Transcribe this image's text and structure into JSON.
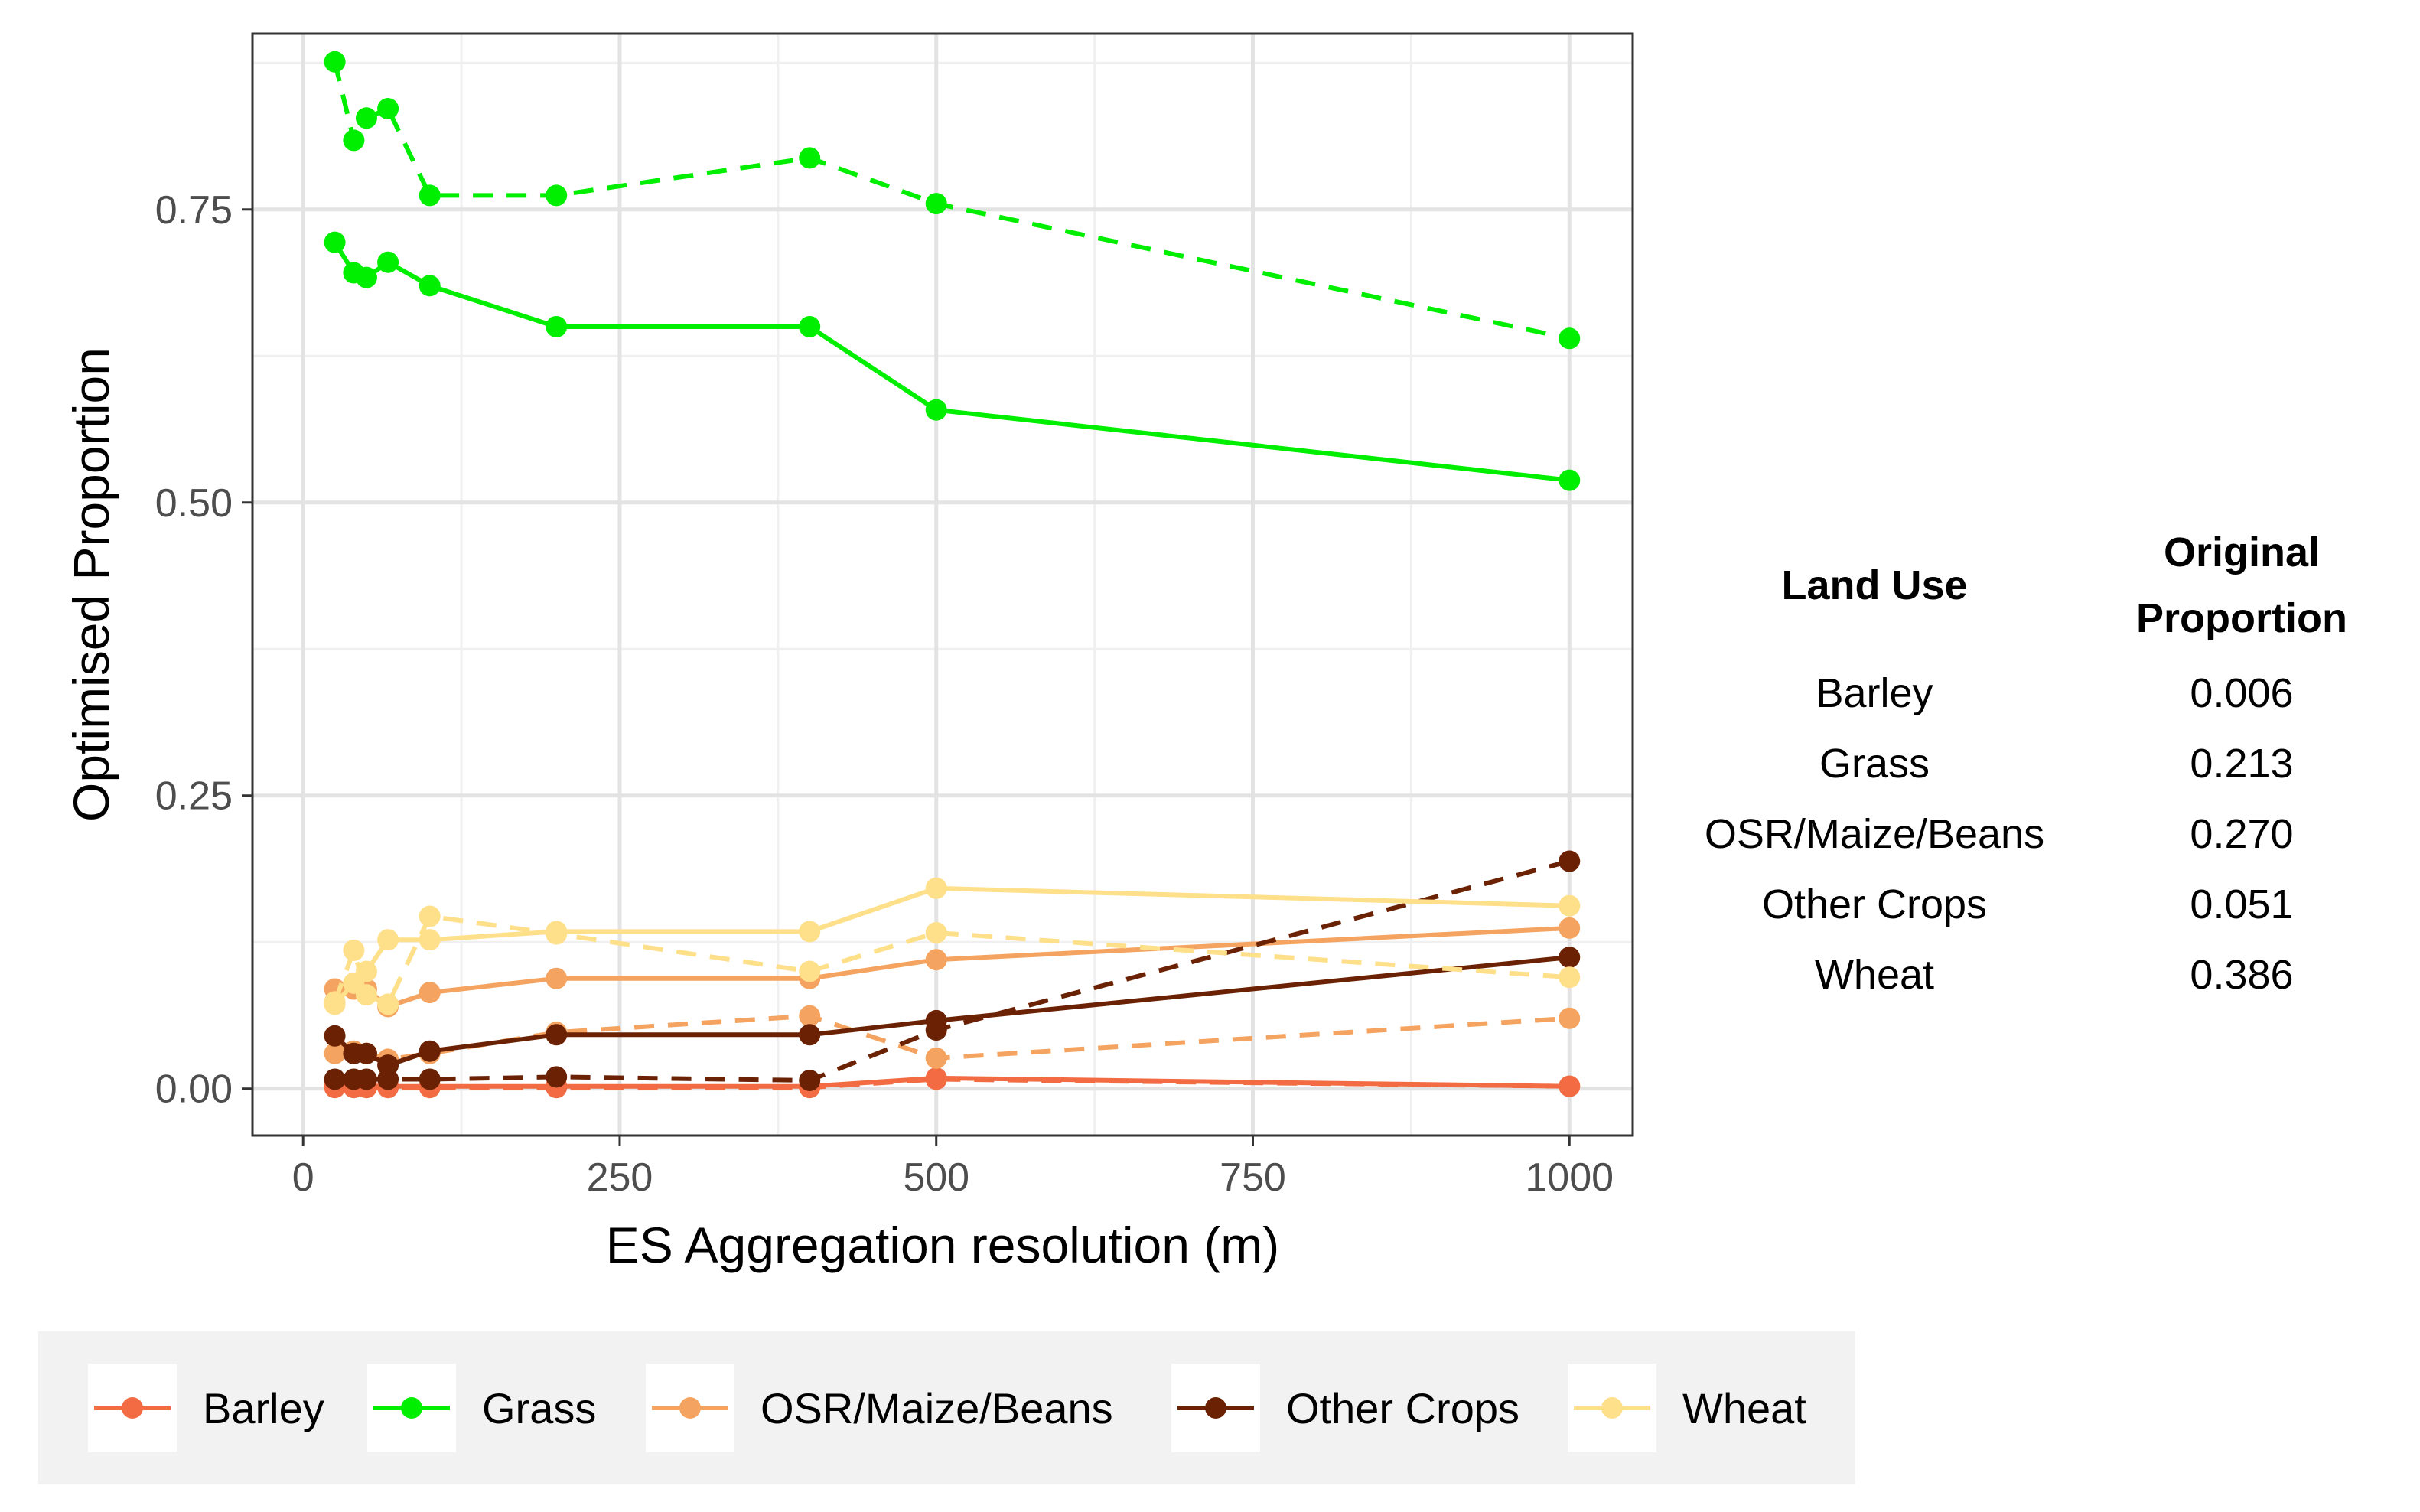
{
  "chart_data": {
    "type": "line",
    "xlabel": "ES Aggregation resolution (m)",
    "ylabel": "Optimised Proportion",
    "xlim": [
      -40,
      1050
    ],
    "ylim": [
      -0.04,
      0.9
    ],
    "x_ticks": [
      0,
      250,
      500,
      750,
      1000
    ],
    "y_ticks": [
      0,
      0.25,
      0.5,
      0.75
    ],
    "x_tick_labels": [
      "0",
      "250",
      "500",
      "750",
      "1000"
    ],
    "y_tick_labels": [
      "0.00",
      "0.25",
      "0.50",
      "0.75"
    ],
    "x": [
      25,
      40,
      50,
      67,
      100,
      200,
      400,
      500,
      1000
    ],
    "series": [
      {
        "name": "Barley",
        "color": "#f26b43",
        "linestyle": "solid",
        "values": [
          0.003,
          0.002,
          0.002,
          0.002,
          0.002,
          0.002,
          0.002,
          0.009,
          0.002
        ]
      },
      {
        "name": "Barley",
        "color": "#f26b43",
        "linestyle": "dashed",
        "values": [
          0.001,
          0.001,
          0.001,
          0.001,
          0.001,
          0.001,
          0.001,
          0.008,
          0.002
        ]
      },
      {
        "name": "Grass",
        "color": "#00ee00",
        "linestyle": "solid",
        "values": [
          0.722,
          0.696,
          0.692,
          0.705,
          0.685,
          0.65,
          0.65,
          0.579,
          0.519
        ]
      },
      {
        "name": "Grass",
        "color": "#00ee00",
        "linestyle": "dashed",
        "values": [
          0.876,
          0.809,
          0.828,
          0.836,
          0.762,
          0.762,
          0.794,
          0.755,
          0.64
        ]
      },
      {
        "name": "OSR/Maize/Beans",
        "color": "#f4a460",
        "linestyle": "solid",
        "values": [
          0.085,
          0.085,
          0.085,
          0.07,
          0.082,
          0.094,
          0.094,
          0.11,
          0.137
        ]
      },
      {
        "name": "OSR/Maize/Beans",
        "color": "#f4a460",
        "linestyle": "dashed",
        "values": [
          0.03,
          0.032,
          0.03,
          0.025,
          0.03,
          0.048,
          0.062,
          0.026,
          0.06
        ]
      },
      {
        "name": "Other Crops",
        "color": "#6b2204",
        "linestyle": "solid",
        "values": [
          0.045,
          0.03,
          0.03,
          0.02,
          0.032,
          0.046,
          0.046,
          0.058,
          0.112
        ]
      },
      {
        "name": "Other Crops",
        "color": "#6b2204",
        "linestyle": "dashed",
        "values": [
          0.008,
          0.008,
          0.008,
          0.008,
          0.008,
          0.01,
          0.007,
          0.05,
          0.194
        ]
      },
      {
        "name": "Wheat",
        "color": "#fee08b",
        "linestyle": "solid",
        "values": [
          0.072,
          0.09,
          0.1,
          0.127,
          0.127,
          0.134,
          0.134,
          0.171,
          0.156
        ]
      },
      {
        "name": "Wheat",
        "color": "#fee08b",
        "linestyle": "dashed",
        "values": [
          0.074,
          0.118,
          0.08,
          0.072,
          0.147,
          0.132,
          0.1,
          0.133,
          0.095
        ]
      }
    ],
    "legend": {
      "placement": "bottom",
      "entries": [
        {
          "label": "Barley",
          "color": "#f26b43"
        },
        {
          "label": "Grass",
          "color": "#00ee00"
        },
        {
          "label": "OSR/Maize/Beans",
          "color": "#f4a460"
        },
        {
          "label": "Other Crops",
          "color": "#6b2204"
        },
        {
          "label": "Wheat",
          "color": "#fee08b"
        }
      ]
    },
    "grid": true
  },
  "side_table": {
    "col1_header": "Land Use",
    "col2_header_line1": "Original",
    "col2_header_line2": "Proportion",
    "rows": [
      {
        "land_use": "Barley",
        "proportion": "0.006"
      },
      {
        "land_use": "Grass",
        "proportion": "0.213"
      },
      {
        "land_use": "OSR/Maize/Beans",
        "proportion": "0.270"
      },
      {
        "land_use": "Other Crops",
        "proportion": "0.051"
      },
      {
        "land_use": "Wheat",
        "proportion": "0.386"
      }
    ]
  }
}
